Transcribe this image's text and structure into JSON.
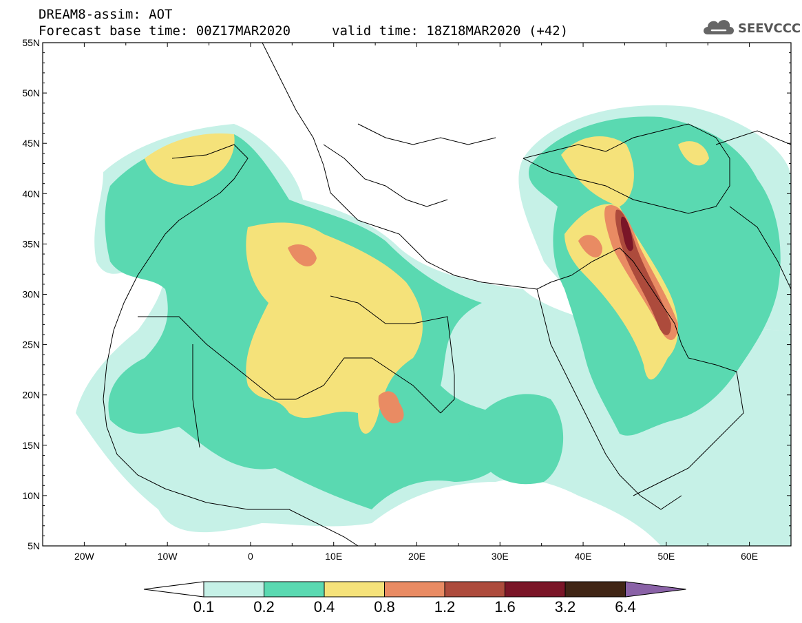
{
  "header": {
    "line1": "DREAM8-assim: AOT",
    "line2": "Forecast base time: 00Z17MAR2020",
    "line3": "valid time: 18Z18MAR2020 (+42)",
    "logo_text": "SEEVCCC"
  },
  "map": {
    "lat_labels": [
      "55N",
      "50N",
      "45N",
      "40N",
      "35N",
      "30N",
      "25N",
      "20N",
      "15N",
      "10N",
      "5N"
    ],
    "lon_labels": [
      "20W",
      "10W",
      "0",
      "10E",
      "20E",
      "30E",
      "40E",
      "50E",
      "60E"
    ],
    "extent": {
      "lon_min": -25,
      "lon_max": 65,
      "lat_min": 5,
      "lat_max": 55
    },
    "variable": "AOT"
  },
  "colorbar": {
    "labels": [
      "0.1",
      "0.2",
      "0.4",
      "0.8",
      "1.2",
      "1.6",
      "3.2",
      "6.4"
    ],
    "colors": [
      "#c6f1e7",
      "#5ad9b1",
      "#f5e27a",
      "#e98b63",
      "#ad4b3c",
      "#7a1527",
      "#402515",
      "#8a62a7"
    ],
    "under_color": "#ffffff"
  }
}
